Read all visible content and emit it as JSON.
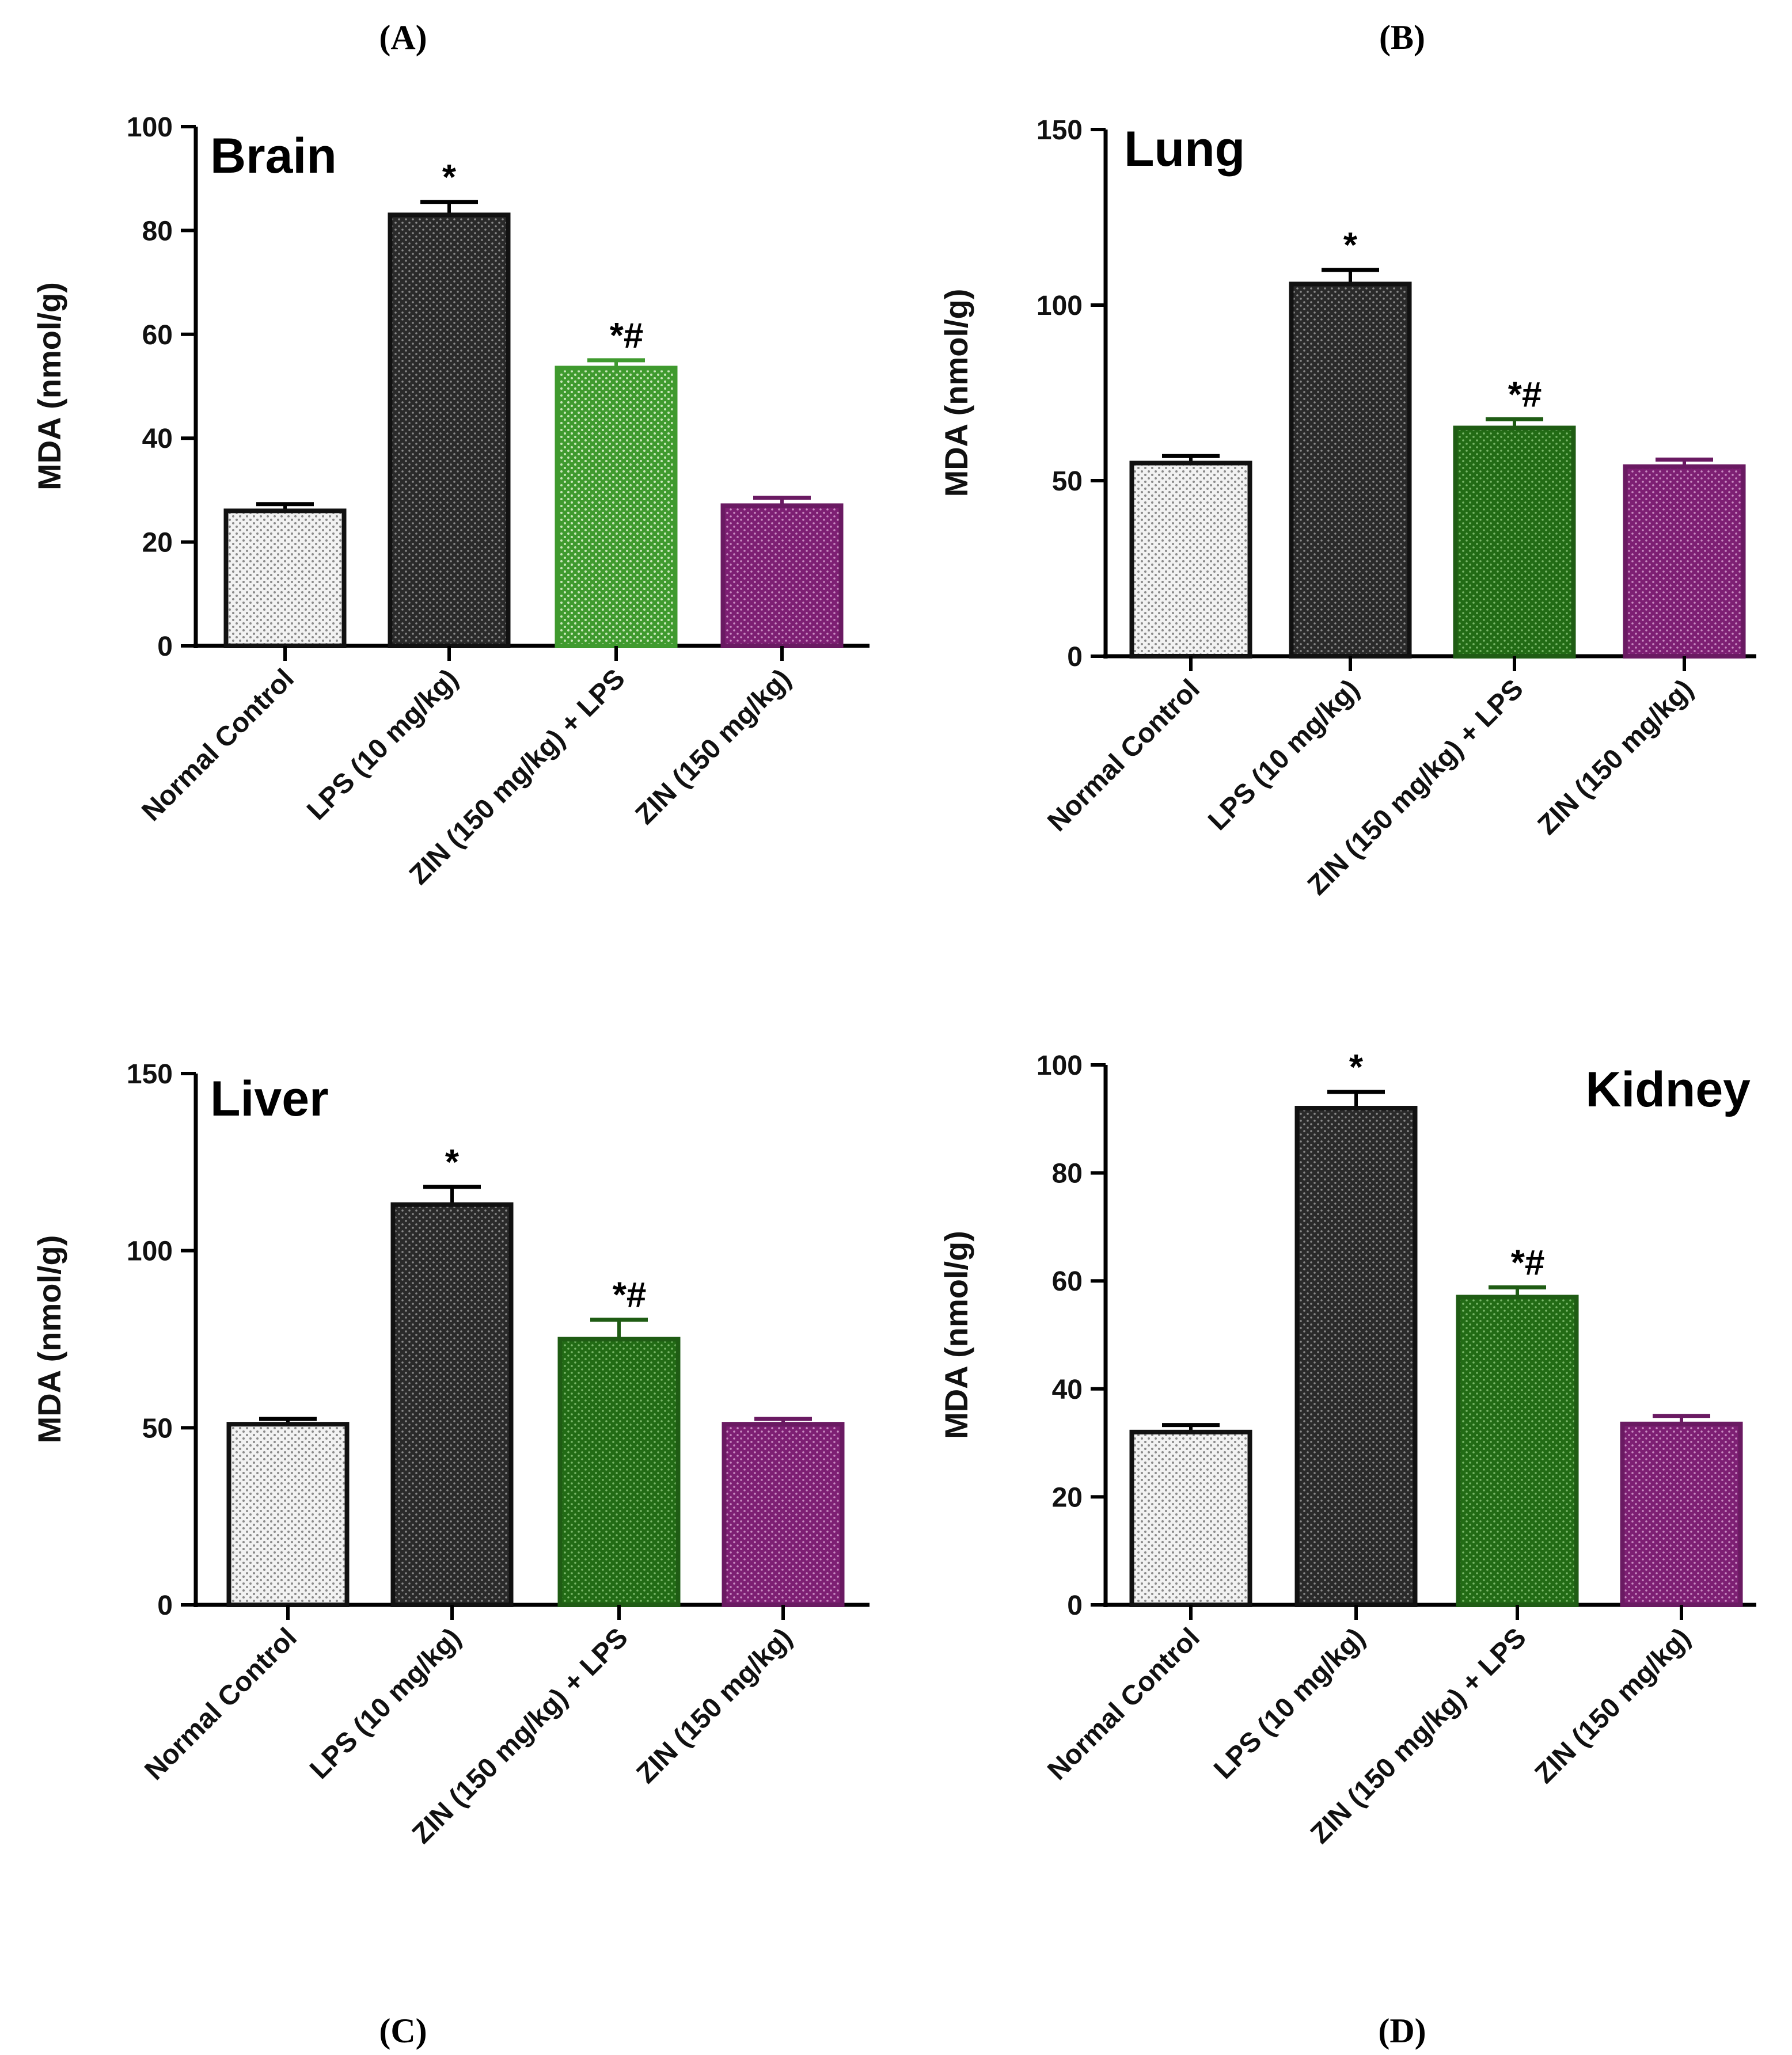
{
  "colors": {
    "normal_control": "#e6e6e6",
    "lps": "#303030",
    "zin_lps": "#2f7d1e",
    "zin": "#8a2a80"
  },
  "chart_data": [
    {
      "panel": "(A)",
      "type": "bar",
      "title": "Brain",
      "title_position": "top-left",
      "ylabel": "MDA (nmol/g)",
      "ylim": [
        0,
        100
      ],
      "yticks": [
        0,
        20,
        40,
        60,
        80,
        100
      ],
      "categories": [
        "Normal Control",
        "LPS (10 mg/kg)",
        "ZIN (150 mg/kg) + LPS",
        "ZIN (150 mg/kg)"
      ],
      "values": [
        26,
        83,
        53.5,
        27
      ],
      "errors": [
        1.3,
        2.5,
        1.5,
        1.5
      ],
      "annotations": [
        "",
        "*",
        "*#",
        ""
      ]
    },
    {
      "panel": "(B)",
      "type": "bar",
      "title": "Lung",
      "title_position": "top-left",
      "ylabel": "MDA (nmol/g)",
      "ylim": [
        0,
        150
      ],
      "yticks": [
        0,
        50,
        100,
        150
      ],
      "categories": [
        "Normal Control",
        "LPS (10 mg/kg)",
        "ZIN (150 mg/kg) + LPS",
        "ZIN (150 mg/kg)"
      ],
      "values": [
        55,
        106,
        65,
        54
      ],
      "errors": [
        2,
        4,
        2.5,
        2
      ],
      "annotations": [
        "",
        "*",
        "*#",
        ""
      ]
    },
    {
      "panel": "(C)",
      "type": "bar",
      "title": "Liver",
      "title_position": "top-left",
      "ylabel": "MDA (nmol/g)",
      "ylim": [
        0,
        150
      ],
      "yticks": [
        0,
        50,
        100,
        150
      ],
      "categories": [
        "Normal Control",
        "LPS (10 mg/kg)",
        "ZIN (150 mg/kg) + LPS",
        "ZIN (150 mg/kg)"
      ],
      "values": [
        51,
        113,
        75,
        51
      ],
      "errors": [
        1.5,
        5,
        5.5,
        1.5
      ],
      "annotations": [
        "",
        "*",
        "*#",
        ""
      ]
    },
    {
      "panel": "(D)",
      "type": "bar",
      "title": "Kidney",
      "title_position": "top-right",
      "ylabel": "MDA (nmol/g)",
      "ylim": [
        0,
        100
      ],
      "yticks": [
        0,
        20,
        40,
        60,
        80,
        100
      ],
      "categories": [
        "Normal Control",
        "LPS (10 mg/kg)",
        "ZIN (150 mg/kg) + LPS",
        "ZIN (150 mg/kg)"
      ],
      "values": [
        32,
        92,
        57,
        33.5
      ],
      "errors": [
        1.3,
        3,
        1.8,
        1.5
      ],
      "annotations": [
        "",
        "*",
        "*#",
        ""
      ]
    }
  ]
}
